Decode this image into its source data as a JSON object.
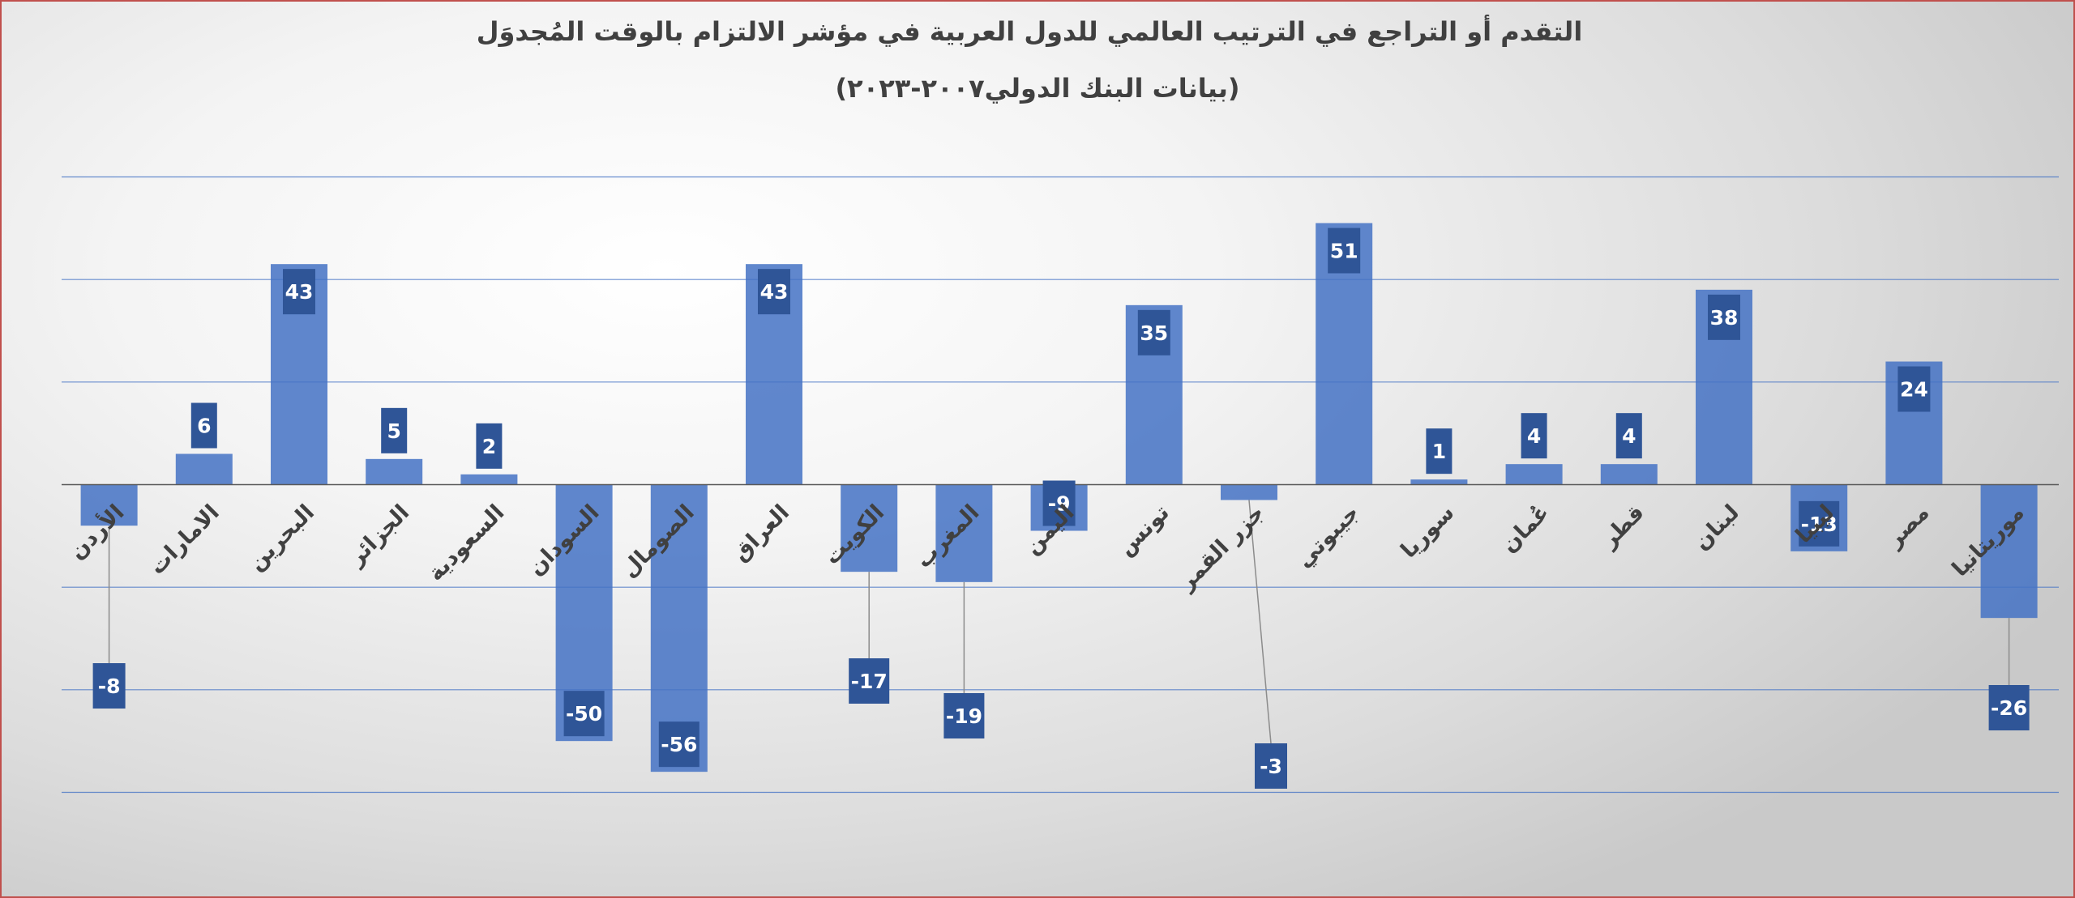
{
  "chart_data": {
    "type": "bar",
    "title": "التقدم أو التراجع في الترتيب العالمي للدول العربية في مؤشر الالتزام بالوقت المُجدوَل",
    "subtitle": "(بيانات البنك الدولي٢٠٠٧-٢٠٢٣)",
    "categories": [
      "الأردن",
      "الامارات",
      "البحرين",
      "الجزائر",
      "السعودية",
      "السودان",
      "الصومال",
      "العراق",
      "الكويت",
      "المغرب",
      "اليمن",
      "تونس",
      "جزر القمر",
      "جيبوتي",
      "سوريا",
      "عُمان",
      "قطر",
      "لبنان",
      "ليبيا",
      "مصر",
      "موريتانيا"
    ],
    "values": [
      -8,
      6,
      43,
      5,
      2,
      -50,
      -56,
      43,
      -17,
      -19,
      -9,
      35,
      -3,
      51,
      1,
      4,
      4,
      38,
      -13,
      24,
      -26
    ],
    "ylim": [
      -60,
      60
    ],
    "grid": true,
    "legend": "none",
    "xlabel": "",
    "ylabel": "",
    "colors": {
      "bar": "#4472c4",
      "label_box": "#2f5597",
      "label_text": "#ffffff",
      "gridline": "#4472c4",
      "axis": "#595959",
      "leader": "#8c8c8c",
      "title": "#404040",
      "frame": "#c0504d"
    }
  }
}
